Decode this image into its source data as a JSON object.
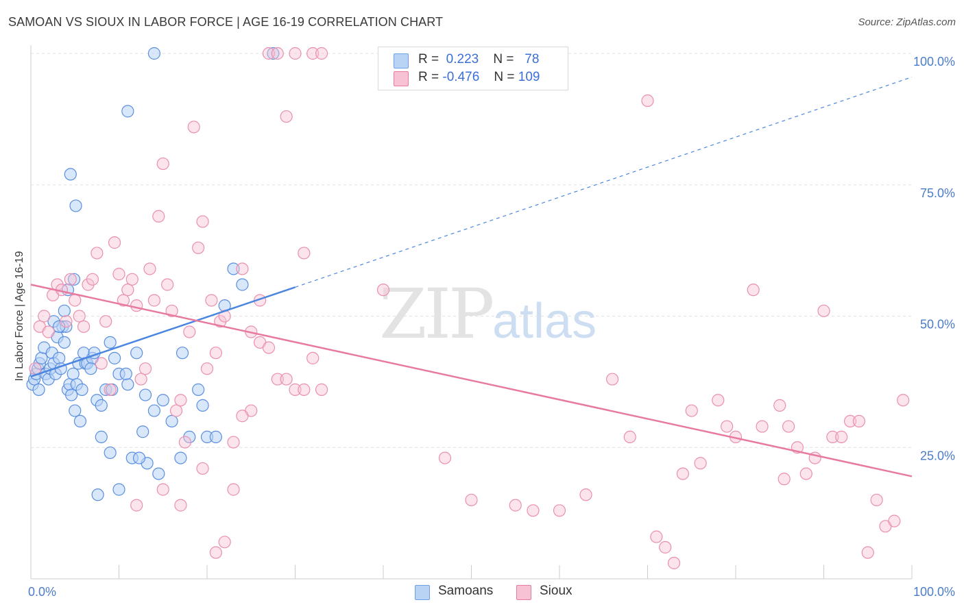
{
  "title": "SAMOAN VS SIOUX IN LABOR FORCE | AGE 16-19 CORRELATION CHART",
  "source": "Source: ZipAtlas.com",
  "watermark": {
    "zip": "ZIP",
    "atlas": "atlas"
  },
  "legend": {
    "r_label": "R =",
    "n_label": "N =",
    "rows": [
      {
        "name": "Samoans",
        "r": "0.223",
        "n": "78",
        "color": "#6ea0e8",
        "fill": "#b9d3f5"
      },
      {
        "name": "Sioux",
        "r": "-0.476",
        "n": "109",
        "color": "#e87aa0",
        "fill": "#f7c3d4"
      }
    ]
  },
  "chart_data": {
    "type": "scatter",
    "title": "SAMOAN VS SIOUX IN LABOR FORCE | AGE 16-19 CORRELATION CHART",
    "xlabel": "",
    "ylabel": "In Labor Force | Age 16-19",
    "xlim": [
      0,
      100
    ],
    "ylim": [
      0,
      100
    ],
    "x_tick_labels": [
      "0.0%",
      "100.0%"
    ],
    "y_tick_labels": [
      "25.0%",
      "50.0%",
      "75.0%",
      "100.0%"
    ],
    "grid": true,
    "legend_position": "top-center",
    "series": [
      {
        "name": "Samoans",
        "color": "#4a86e0",
        "trend": {
          "x0": 0,
          "y0": 38.5,
          "x1": 30,
          "y1": 55.5,
          "dashed_extension_to": {
            "x": 100,
            "y": 95.5
          }
        },
        "points": [
          [
            0.2,
            37
          ],
          [
            0.4,
            38
          ],
          [
            0.6,
            39
          ],
          [
            0.8,
            40
          ],
          [
            1,
            41
          ],
          [
            1.2,
            42
          ],
          [
            1.5,
            44
          ],
          [
            1.7,
            39
          ],
          [
            2,
            38
          ],
          [
            2.2,
            40
          ],
          [
            2.4,
            43
          ],
          [
            2.6,
            41
          ],
          [
            2.8,
            39
          ],
          [
            3,
            46
          ],
          [
            3.2,
            42
          ],
          [
            3.4,
            40
          ],
          [
            3.6,
            48
          ],
          [
            3.8,
            45
          ],
          [
            4,
            48
          ],
          [
            4.2,
            36
          ],
          [
            4.4,
            37
          ],
          [
            4.6,
            35
          ],
          [
            4.8,
            39
          ],
          [
            5,
            32
          ],
          [
            5.2,
            37
          ],
          [
            5.4,
            41
          ],
          [
            5.6,
            30
          ],
          [
            5.8,
            36
          ],
          [
            6,
            43
          ],
          [
            6.2,
            41
          ],
          [
            6.4,
            41
          ],
          [
            7,
            42
          ],
          [
            7.5,
            34
          ],
          [
            8,
            33
          ],
          [
            8.5,
            36
          ],
          [
            9,
            45
          ],
          [
            9.5,
            42
          ],
          [
            10,
            39
          ],
          [
            11,
            37
          ],
          [
            12,
            43
          ],
          [
            13,
            35
          ],
          [
            14,
            32
          ],
          [
            15,
            34
          ],
          [
            16,
            30
          ],
          [
            17,
            23
          ],
          [
            18,
            27
          ],
          [
            6.8,
            40
          ],
          [
            7.2,
            43
          ],
          [
            5.1,
            71
          ],
          [
            4.5,
            77
          ],
          [
            11,
            89
          ],
          [
            14,
            100
          ],
          [
            27.5,
            100
          ],
          [
            3.8,
            51
          ],
          [
            4.2,
            55
          ],
          [
            4.9,
            57
          ],
          [
            9.2,
            36
          ],
          [
            10.8,
            39
          ],
          [
            12.7,
            28
          ],
          [
            13.2,
            22
          ],
          [
            14.5,
            20
          ],
          [
            17.2,
            43
          ],
          [
            19,
            36
          ],
          [
            19.5,
            33
          ],
          [
            20,
            27
          ],
          [
            21,
            27
          ],
          [
            22,
            52
          ],
          [
            23,
            59
          ],
          [
            24,
            56
          ],
          [
            8,
            27
          ],
          [
            9,
            24
          ],
          [
            10,
            17
          ],
          [
            11.5,
            23
          ],
          [
            12.3,
            23
          ],
          [
            2.6,
            49
          ],
          [
            3.2,
            48
          ],
          [
            7.6,
            16
          ],
          [
            0.9,
            36
          ]
        ]
      },
      {
        "name": "Sioux",
        "color": "#e87aa0",
        "trend": {
          "x0": 0,
          "y0": 56,
          "x1": 100,
          "y1": 19.5
        },
        "points": [
          [
            0.5,
            40
          ],
          [
            1,
            48
          ],
          [
            1.5,
            50
          ],
          [
            2,
            47
          ],
          [
            2.5,
            54
          ],
          [
            3,
            56
          ],
          [
            3.5,
            55
          ],
          [
            4,
            49
          ],
          [
            4.5,
            57
          ],
          [
            5,
            53
          ],
          [
            5.5,
            50
          ],
          [
            6,
            48
          ],
          [
            6.5,
            56
          ],
          [
            7,
            57
          ],
          [
            7.5,
            62
          ],
          [
            8,
            41
          ],
          [
            8.5,
            49
          ],
          [
            9,
            36
          ],
          [
            9.5,
            64
          ],
          [
            10,
            58
          ],
          [
            10.5,
            53
          ],
          [
            11,
            55
          ],
          [
            11.5,
            57
          ],
          [
            12,
            52
          ],
          [
            12.5,
            38
          ],
          [
            13,
            40
          ],
          [
            13.5,
            59
          ],
          [
            14,
            53
          ],
          [
            14.5,
            69
          ],
          [
            15,
            79
          ],
          [
            15.5,
            56
          ],
          [
            16,
            51
          ],
          [
            16.5,
            32
          ],
          [
            17,
            34
          ],
          [
            17.5,
            26
          ],
          [
            18,
            47
          ],
          [
            18.5,
            86
          ],
          [
            19,
            63
          ],
          [
            19.5,
            68
          ],
          [
            20,
            40
          ],
          [
            20.5,
            53
          ],
          [
            21,
            43
          ],
          [
            21.5,
            49
          ],
          [
            22,
            50
          ],
          [
            23,
            26
          ],
          [
            24,
            59
          ],
          [
            25,
            32
          ],
          [
            26,
            53
          ],
          [
            27,
            100
          ],
          [
            28,
            100
          ],
          [
            29,
            88
          ],
          [
            30,
            100
          ],
          [
            31,
            62
          ],
          [
            32,
            100
          ],
          [
            33,
            100
          ],
          [
            15,
            17
          ],
          [
            17,
            14
          ],
          [
            19.5,
            21
          ],
          [
            21,
            5
          ],
          [
            22,
            7
          ],
          [
            23,
            17
          ],
          [
            24,
            31
          ],
          [
            25,
            47
          ],
          [
            26,
            45
          ],
          [
            27,
            44
          ],
          [
            28,
            38
          ],
          [
            29,
            38
          ],
          [
            30,
            36
          ],
          [
            31,
            36
          ],
          [
            32,
            42
          ],
          [
            33,
            36
          ],
          [
            40,
            55
          ],
          [
            47,
            23
          ],
          [
            50,
            15
          ],
          [
            55,
            14
          ],
          [
            57,
            13
          ],
          [
            60,
            13
          ],
          [
            63,
            16
          ],
          [
            66,
            38
          ],
          [
            68,
            27
          ],
          [
            70,
            91
          ],
          [
            71,
            8
          ],
          [
            72,
            6
          ],
          [
            73,
            3
          ],
          [
            74,
            20
          ],
          [
            75,
            32
          ],
          [
            76,
            22
          ],
          [
            78,
            34
          ],
          [
            79,
            29
          ],
          [
            80,
            27
          ],
          [
            82,
            55
          ],
          [
            83,
            29
          ],
          [
            85,
            33
          ],
          [
            86,
            29
          ],
          [
            87,
            25
          ],
          [
            88,
            20
          ],
          [
            89,
            23
          ],
          [
            90,
            51
          ],
          [
            91,
            27
          ],
          [
            92,
            27
          ],
          [
            93,
            30
          ],
          [
            94,
            30
          ],
          [
            95,
            5
          ],
          [
            96,
            15
          ],
          [
            97,
            10
          ],
          [
            98,
            11
          ],
          [
            99,
            34
          ],
          [
            85.5,
            19
          ],
          [
            12,
            14
          ]
        ]
      }
    ]
  }
}
